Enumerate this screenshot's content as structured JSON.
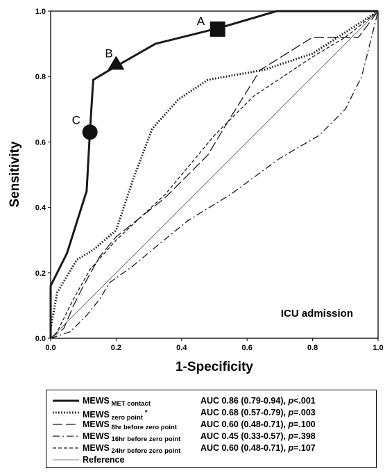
{
  "chart_data": {
    "type": "line",
    "xlabel": "1-Specificity",
    "ylabel": "Sensitivity",
    "xlim": [
      0,
      1
    ],
    "ylim": [
      0,
      1
    ],
    "x_ticks": [
      "0.0",
      "0.2",
      "0.4",
      "0.6",
      "0.8",
      "1.0"
    ],
    "y_ticks": [
      "0.0",
      "0.2",
      "0.4",
      "0.6",
      "0.8",
      "1.0"
    ],
    "panel_label": "ICU admission",
    "grid": false,
    "legend_position": "bottom",
    "series": [
      {
        "name": "MEWS",
        "name_sub": "MET contact",
        "name_sup": "",
        "auc_text": "AUC 0.86 (0.79-0.94), ",
        "p_label": "p",
        "p_value": "<.001",
        "style": "solid-thick",
        "x": [
          0,
          0,
          0.05,
          0.11,
          0.12,
          0.13,
          0.18,
          0.32,
          0.52,
          0.69,
          1.0
        ],
        "y": [
          0,
          0.16,
          0.26,
          0.45,
          0.63,
          0.79,
          0.82,
          0.9,
          0.95,
          1.0,
          1.0
        ]
      },
      {
        "name": "MEWS",
        "name_sub": "zero point",
        "name_sup": "*",
        "auc_text": "AUC 0.68 (0.57-0.79), ",
        "p_label": "p",
        "p_value": "=.003",
        "style": "dotted",
        "x": [
          0,
          0.02,
          0.05,
          0.08,
          0.13,
          0.2,
          0.25,
          0.31,
          0.39,
          0.48,
          0.65,
          0.8,
          1.0
        ],
        "y": [
          0.03,
          0.14,
          0.19,
          0.24,
          0.27,
          0.33,
          0.48,
          0.64,
          0.73,
          0.79,
          0.82,
          0.87,
          1.0
        ]
      },
      {
        "name": "MEWS",
        "name_sub": "8hr  before zero point",
        "name_sup": "",
        "auc_text": "AUC 0.60 (0.48-0.71), ",
        "p_label": "p",
        "p_value": "=.100",
        "style": "long-dash",
        "x": [
          0,
          0.04,
          0.07,
          0.1,
          0.15,
          0.2,
          0.35,
          0.48,
          0.54,
          0.64,
          0.8,
          0.94,
          1.0
        ],
        "y": [
          0,
          0.03,
          0.1,
          0.16,
          0.25,
          0.31,
          0.43,
          0.56,
          0.66,
          0.82,
          0.92,
          0.92,
          1.0
        ]
      },
      {
        "name": "MEWS",
        "name_sub": "16hr before zero point",
        "name_sup": "",
        "auc_text": "AUC 0.45 (0.33-0.57), ",
        "p_label": "p",
        "p_value": "=.398",
        "style": "dash-dot",
        "x": [
          0,
          0.06,
          0.11,
          0.15,
          0.18,
          0.25,
          0.31,
          0.42,
          0.55,
          0.7,
          0.82,
          0.9,
          0.95,
          1.0
        ],
        "y": [
          0,
          0.02,
          0.07,
          0.12,
          0.17,
          0.22,
          0.27,
          0.36,
          0.44,
          0.55,
          0.62,
          0.7,
          0.8,
          1.0
        ]
      },
      {
        "name": "MEWS",
        "name_sub": "24hr before zero point",
        "name_sup": "",
        "auc_text": "AUC 0.60 (0.48-0.71), ",
        "p_label": "p",
        "p_value": "=.107",
        "style": "short-dash",
        "x": [
          0,
          0.02,
          0.07,
          0.12,
          0.2,
          0.35,
          0.5,
          0.62,
          0.8,
          0.9,
          1.0
        ],
        "y": [
          0,
          0.02,
          0.12,
          0.21,
          0.3,
          0.44,
          0.62,
          0.74,
          0.86,
          0.92,
          1.0
        ]
      },
      {
        "name": "Reference",
        "name_sub": "",
        "name_sup": "",
        "auc_text": "",
        "p_label": "",
        "p_value": "",
        "style": "thin-solid",
        "x": [
          0,
          1
        ],
        "y": [
          0,
          1
        ]
      }
    ],
    "annotations": [
      {
        "label": "A",
        "marker": "square",
        "x": 0.51,
        "y": 0.945
      },
      {
        "label": "B",
        "marker": "triangle",
        "x": 0.2,
        "y": 0.84
      },
      {
        "label": "C",
        "marker": "circle",
        "x": 0.12,
        "y": 0.63
      }
    ]
  }
}
